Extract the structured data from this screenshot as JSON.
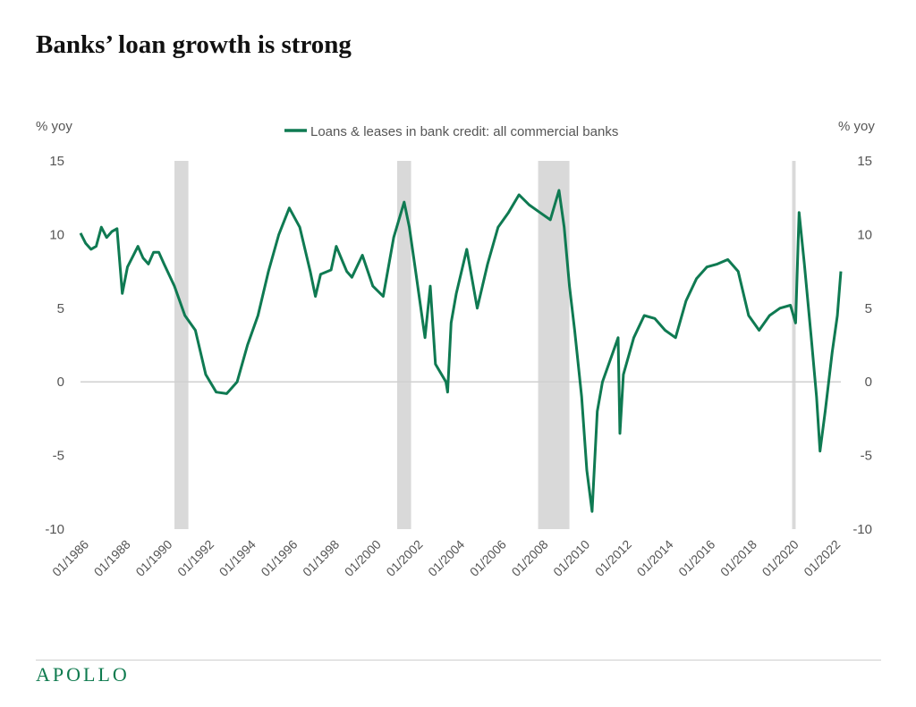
{
  "title": "Banks’ loan growth is strong",
  "brand": "APOLLO",
  "colors": {
    "series": "#0f7a52",
    "recession": "#d9d9d9",
    "zero_line": "#d0d0d0",
    "axis_text": "#555555"
  },
  "chart_data": {
    "type": "line",
    "ylabel_left": "% yoy",
    "ylabel_right": "% yoy",
    "ylim": [
      -10,
      15
    ],
    "yticks": [
      15,
      10,
      5,
      0,
      -5,
      -10
    ],
    "xlim": [
      "1986-01",
      "2022-06"
    ],
    "xticks": [
      "01/1986",
      "01/1988",
      "01/1990",
      "01/1992",
      "01/1994",
      "01/1996",
      "01/1998",
      "01/2000",
      "01/2002",
      "01/2004",
      "01/2006",
      "01/2008",
      "01/2010",
      "01/2012",
      "01/2014",
      "01/2016",
      "01/2018",
      "01/2020",
      "01/2022"
    ],
    "legend": {
      "position": "top-center"
    },
    "recessions": [
      {
        "start": "1990-07",
        "end": "1991-03"
      },
      {
        "start": "2001-03",
        "end": "2001-11"
      },
      {
        "start": "2007-12",
        "end": "2009-06"
      },
      {
        "start": "2020-02",
        "end": "2020-04"
      }
    ],
    "series": [
      {
        "name": "Loans & leases in bank credit: all commercial banks",
        "points": [
          [
            "1986-01",
            10.1
          ],
          [
            "1986-04",
            9.4
          ],
          [
            "1986-07",
            9.0
          ],
          [
            "1986-10",
            9.2
          ],
          [
            "1987-01",
            10.5
          ],
          [
            "1987-04",
            9.8
          ],
          [
            "1987-07",
            10.2
          ],
          [
            "1987-10",
            10.4
          ],
          [
            "1988-01",
            6.0
          ],
          [
            "1988-04",
            7.8
          ],
          [
            "1988-07",
            8.5
          ],
          [
            "1988-10",
            9.2
          ],
          [
            "1989-01",
            8.4
          ],
          [
            "1989-04",
            8.0
          ],
          [
            "1989-07",
            8.8
          ],
          [
            "1989-10",
            8.8
          ],
          [
            "1990-01",
            8.0
          ],
          [
            "1990-07",
            6.5
          ],
          [
            "1991-01",
            4.5
          ],
          [
            "1991-07",
            3.5
          ],
          [
            "1992-01",
            0.5
          ],
          [
            "1992-07",
            -0.7
          ],
          [
            "1993-01",
            -0.8
          ],
          [
            "1993-07",
            0.0
          ],
          [
            "1994-01",
            2.5
          ],
          [
            "1994-07",
            4.5
          ],
          [
            "1995-01",
            7.5
          ],
          [
            "1995-07",
            10.0
          ],
          [
            "1996-01",
            11.8
          ],
          [
            "1996-07",
            10.5
          ],
          [
            "1997-01",
            7.5
          ],
          [
            "1997-04",
            5.8
          ],
          [
            "1997-07",
            7.3
          ],
          [
            "1998-01",
            7.6
          ],
          [
            "1998-04",
            9.2
          ],
          [
            "1998-10",
            7.5
          ],
          [
            "1999-01",
            7.1
          ],
          [
            "1999-07",
            8.6
          ],
          [
            "2000-01",
            6.5
          ],
          [
            "2000-07",
            5.8
          ],
          [
            "2001-01",
            9.8
          ],
          [
            "2001-07",
            12.2
          ],
          [
            "2001-10",
            10.5
          ],
          [
            "2002-01",
            8.0
          ],
          [
            "2002-07",
            3.0
          ],
          [
            "2002-10",
            6.5
          ],
          [
            "2003-01",
            1.2
          ],
          [
            "2003-07",
            0.0
          ],
          [
            "2003-08",
            -0.7
          ],
          [
            "2003-10",
            4.0
          ],
          [
            "2004-01",
            6.0
          ],
          [
            "2004-07",
            9.0
          ],
          [
            "2005-01",
            5.0
          ],
          [
            "2005-07",
            8.0
          ],
          [
            "2006-01",
            10.5
          ],
          [
            "2006-07",
            11.5
          ],
          [
            "2007-01",
            12.7
          ],
          [
            "2007-07",
            12.0
          ],
          [
            "2008-01",
            11.5
          ],
          [
            "2008-07",
            11.0
          ],
          [
            "2008-12",
            13.0
          ],
          [
            "2009-03",
            10.5
          ],
          [
            "2009-06",
            6.5
          ],
          [
            "2009-09",
            3.5
          ],
          [
            "2010-01",
            -1.0
          ],
          [
            "2010-04",
            -6.0
          ],
          [
            "2010-07",
            -8.8
          ],
          [
            "2010-10",
            -2.0
          ],
          [
            "2011-01",
            0.0
          ],
          [
            "2011-07",
            2.0
          ],
          [
            "2011-10",
            3.0
          ],
          [
            "2011-11",
            -3.5
          ],
          [
            "2012-01",
            0.5
          ],
          [
            "2012-07",
            3.0
          ],
          [
            "2013-01",
            4.5
          ],
          [
            "2013-07",
            4.3
          ],
          [
            "2014-01",
            3.5
          ],
          [
            "2014-07",
            3.0
          ],
          [
            "2015-01",
            5.5
          ],
          [
            "2015-07",
            7.0
          ],
          [
            "2016-01",
            7.8
          ],
          [
            "2016-07",
            8.0
          ],
          [
            "2017-01",
            8.3
          ],
          [
            "2017-07",
            7.5
          ],
          [
            "2018-01",
            4.5
          ],
          [
            "2018-07",
            3.5
          ],
          [
            "2019-01",
            4.5
          ],
          [
            "2019-07",
            5.0
          ],
          [
            "2020-01",
            5.2
          ],
          [
            "2020-04",
            4.0
          ],
          [
            "2020-06",
            11.5
          ],
          [
            "2020-09",
            8.0
          ],
          [
            "2021-01",
            3.0
          ],
          [
            "2021-04",
            -1.0
          ],
          [
            "2021-06",
            -4.7
          ],
          [
            "2021-09",
            -2.0
          ],
          [
            "2022-01",
            2.0
          ],
          [
            "2022-04",
            4.5
          ],
          [
            "2022-06",
            7.5
          ]
        ]
      }
    ]
  }
}
